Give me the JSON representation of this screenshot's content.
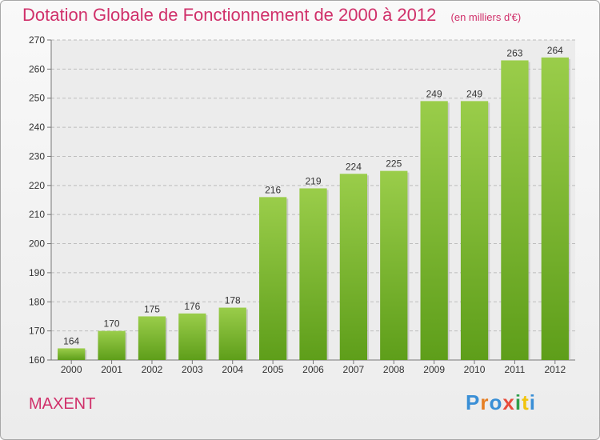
{
  "header": {
    "title": "Dotation Globale de Fonctionnement de 2000 à 2012",
    "unit": "(en milliers d'€)"
  },
  "commune": "MAXENT",
  "logo": {
    "text": "Proxiti",
    "letter_colors": [
      "#3a8fd6",
      "#e67e22",
      "#3a8fd6",
      "#e74c3c",
      "#2e9e4a",
      "#f1c40f",
      "#3a8fd6"
    ]
  },
  "chart_data": {
    "type": "bar",
    "categories": [
      "2000",
      "2001",
      "2002",
      "2003",
      "2004",
      "2005",
      "2006",
      "2007",
      "2008",
      "2009",
      "2010",
      "2011",
      "2012"
    ],
    "values": [
      164,
      170,
      175,
      176,
      178,
      216,
      219,
      224,
      225,
      249,
      249,
      263,
      264
    ],
    "ylim": [
      160,
      270
    ],
    "yticks": [
      160,
      170,
      180,
      190,
      200,
      210,
      220,
      230,
      240,
      250,
      260,
      270
    ],
    "grid": true,
    "bar_color_top": "#9acd4a",
    "bar_color_bottom": "#5e9e1a",
    "data_labels": true
  }
}
